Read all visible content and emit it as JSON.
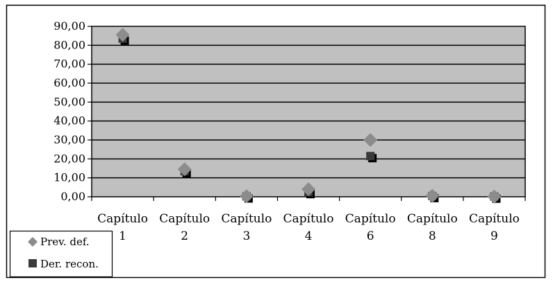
{
  "chart_data": {
    "type": "scatter",
    "categories": [
      [
        "Capítulo",
        "1"
      ],
      [
        "Capítulo",
        "2"
      ],
      [
        "Capítulo",
        "3"
      ],
      [
        "Capítulo",
        "4"
      ],
      [
        "Capítulo",
        "6"
      ],
      [
        "Capítulo",
        "8"
      ],
      [
        "Capítulo",
        "9"
      ]
    ],
    "y_ticks": [
      "0,00",
      "10,00",
      "20,00",
      "30,00",
      "40,00",
      "50,00",
      "60,00",
      "70,00",
      "80,00",
      "90,00"
    ],
    "ylim": [
      0,
      90
    ],
    "grid": "horizontal",
    "legend_position": "bottom-left",
    "series": [
      {
        "name": "Prev. def.",
        "marker": "diamond",
        "color": "#8c8c8c",
        "values": [
          85.5,
          14.5,
          0.3,
          4.0,
          30.0,
          0.5,
          0.1
        ]
      },
      {
        "name": "Der. recon.",
        "marker": "square",
        "color": "#3a3a3a",
        "values": [
          83.5,
          13.5,
          0.2,
          2.5,
          21.5,
          0.4,
          0.1
        ]
      }
    ],
    "title": "",
    "xlabel": "",
    "ylabel": ""
  },
  "colors": {
    "plot_background": "#c0c0c0",
    "gridline": "#000000"
  }
}
